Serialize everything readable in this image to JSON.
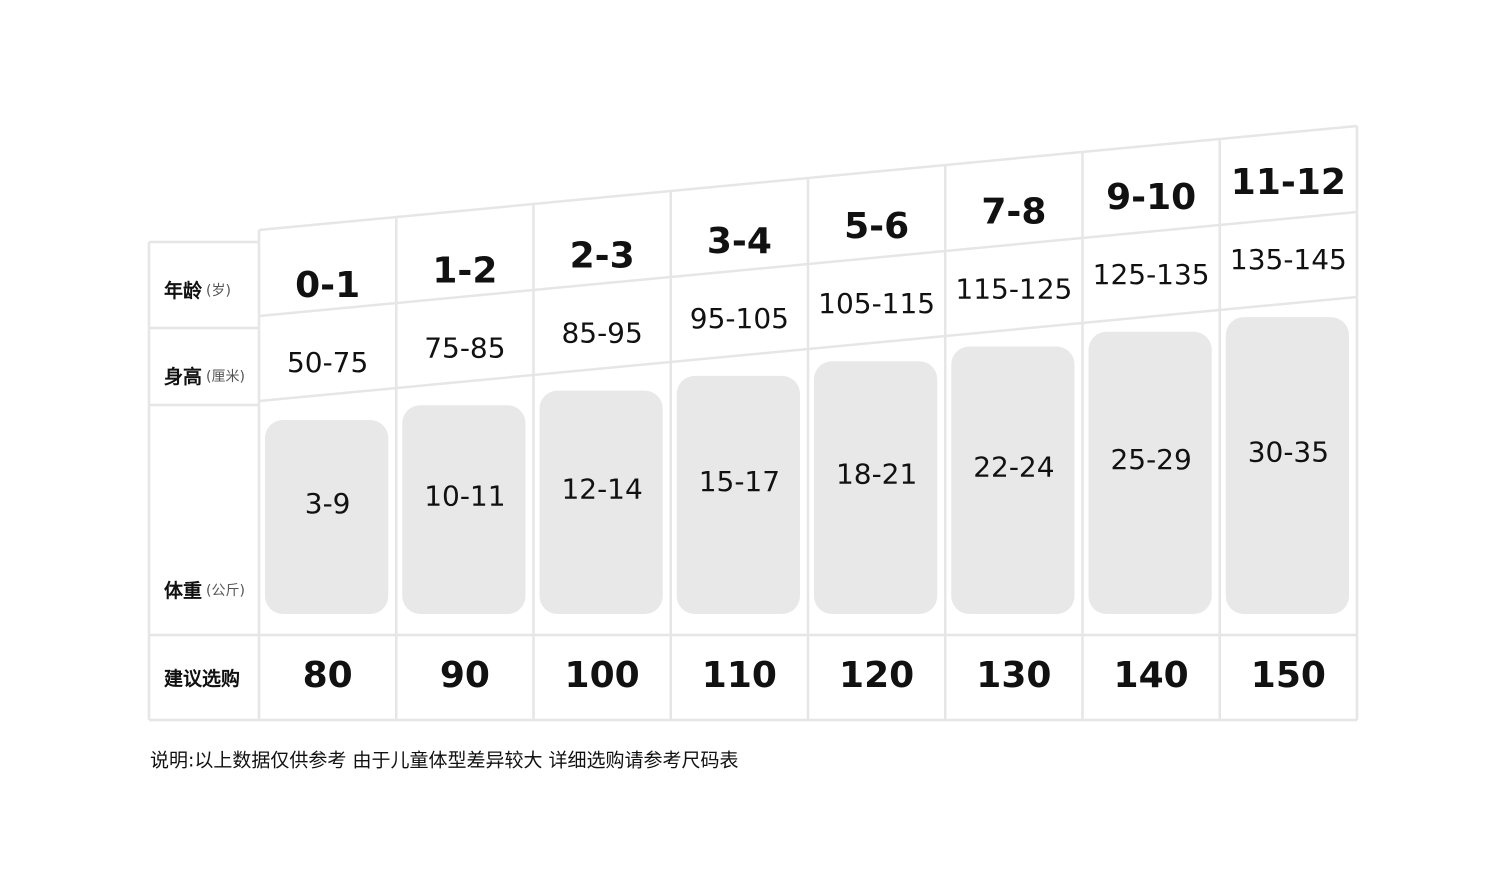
{
  "row_labels": [
    {
      "name": "年龄",
      "unit": "(岁)"
    },
    {
      "name": "身高",
      "unit": "(厘米)"
    },
    {
      "name": "体重",
      "unit": "(公斤)"
    },
    {
      "name": "建议选购"
    }
  ],
  "columns": [
    {
      "age": "0-1",
      "height": "50-75",
      "weight": "3-9",
      "size": 80
    },
    {
      "age": "1-2",
      "height": "75-85",
      "weight": "10-11",
      "size": 90
    },
    {
      "age": "2-3",
      "height": "85-95",
      "weight": "12-14",
      "size": 100
    },
    {
      "age": "3-4",
      "height": "95-105",
      "weight": "15-17",
      "size": 110
    },
    {
      "age": "5-6",
      "height": "105-115",
      "weight": "18-21",
      "size": 120
    },
    {
      "age": "7-8",
      "height": "115-125",
      "weight": "22-24",
      "size": 130
    },
    {
      "age": "9-10",
      "height": "125-135",
      "weight": "25-29",
      "size": 140
    },
    {
      "age": "11-12",
      "height": "135-145",
      "weight": "30-35",
      "size": 150
    }
  ],
  "note": "说明:以上数据仅供参考 由于儿童体型差异较大 详细选购请参考尺码表"
}
